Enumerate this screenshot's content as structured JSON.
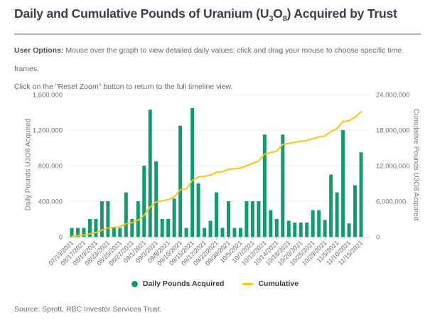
{
  "header": {
    "title_parts": {
      "t1": "Daily and Cumulative Pounds of Uranium (U",
      "sub1": "3",
      "t2": "O",
      "sub2": "8",
      "t3": ") Acquired by Trust"
    },
    "instructions": {
      "label": "User Options:",
      "line1": " Mouse over the graph to view detailed daily values; click and drag your mouse to choose specific time frames.",
      "line2": "Click on the \"Reset Zoom\" button to return to the full timeline view."
    }
  },
  "colors": {
    "bar_green": "#119c6e",
    "line_gold": "#fbc30f",
    "gridline": "#ededef",
    "axis_line": "#c9ced4",
    "tick_text": "#6e7276",
    "x_label_text": "#67696c"
  },
  "legend": {
    "items": [
      {
        "label": "Daily Pounds Acquired",
        "swatch": "circle",
        "color": "#119c6e"
      },
      {
        "label": "Cumulative",
        "swatch": "line",
        "color": "#fbc30f"
      }
    ]
  },
  "source": "Source: Sprott, RBC Investor Services Trust.",
  "chart_data": {
    "type": "bar",
    "title": "Daily and Cumulative Pounds of Uranium (U3O8) Acquired by Trust",
    "combo": "bars (daily, left axis) + line (cumulative running total, right axis)",
    "n_bars": 49,
    "x_tick_every_other_bar": true,
    "x_tick_labels": [
      "07/19/2021",
      "08/17/2021",
      "08/19/2021",
      "08/23/2021",
      "08/25/2021",
      "08/27/2021",
      "09/1/2021",
      "09/3/2021",
      "09/8/2021",
      "09/10/2021",
      "09/15/2021",
      "09/17/2021",
      "09/22/2021",
      "09/30/2021",
      "10/5/2021",
      "10/7/2021",
      "10/12/2021",
      "10/14/2021",
      "10/18/2021",
      "10/20/2021",
      "10/25/2021",
      "10/29/2021",
      "11/5/2021",
      "11/10/2021",
      "11/15/2021"
    ],
    "left_axis": {
      "label": "Daily Pounds U3O8 Acquired",
      "min": 0,
      "max": 1600000,
      "tick_values": [
        0,
        400000,
        800000,
        1200000,
        1600000
      ]
    },
    "right_axis": {
      "label": "Cumulative Pounds U3O8 Acquired",
      "min": 0,
      "max": 24000000,
      "tick_values": [
        0,
        6000000,
        12000000,
        18000000,
        24000000
      ]
    },
    "grid": "horizontal only",
    "legend_position": "bottom center",
    "series": [
      {
        "name": "Daily Pounds Acquired",
        "type": "bar",
        "axis": "left",
        "color": "#119c6e",
        "values": [
          100000,
          100000,
          100000,
          200000,
          200000,
          400000,
          400000,
          100000,
          100000,
          500000,
          200000,
          400000,
          800000,
          1430000,
          850000,
          200000,
          200000,
          430000,
          1250000,
          100000,
          1450000,
          600000,
          100000,
          180000,
          500000,
          100000,
          400000,
          100000,
          100000,
          400000,
          400000,
          400000,
          1150000,
          300000,
          200000,
          1150000,
          180000,
          160000,
          160000,
          160000,
          300000,
          300000,
          190000,
          700000,
          500000,
          1200000,
          150000,
          580000,
          950000
        ]
      },
      {
        "name": "Cumulative",
        "type": "line",
        "axis": "right",
        "color": "#fbc30f",
        "values": [
          100000,
          200000,
          300000,
          500000,
          700000,
          1100000,
          1500000,
          1600000,
          1700000,
          2200000,
          2400000,
          2800000,
          3600000,
          5030000,
          5880000,
          6080000,
          6280000,
          6710000,
          7960000,
          8060000,
          9510000,
          10110000,
          10210000,
          10390000,
          10890000,
          10990000,
          11390000,
          11490000,
          11590000,
          11990000,
          12390000,
          12790000,
          13940000,
          14240000,
          14440000,
          15590000,
          15770000,
          15930000,
          16090000,
          16250000,
          16550000,
          16850000,
          17040000,
          17740000,
          18240000,
          19440000,
          19590000,
          20170000,
          21120000
        ]
      }
    ]
  }
}
